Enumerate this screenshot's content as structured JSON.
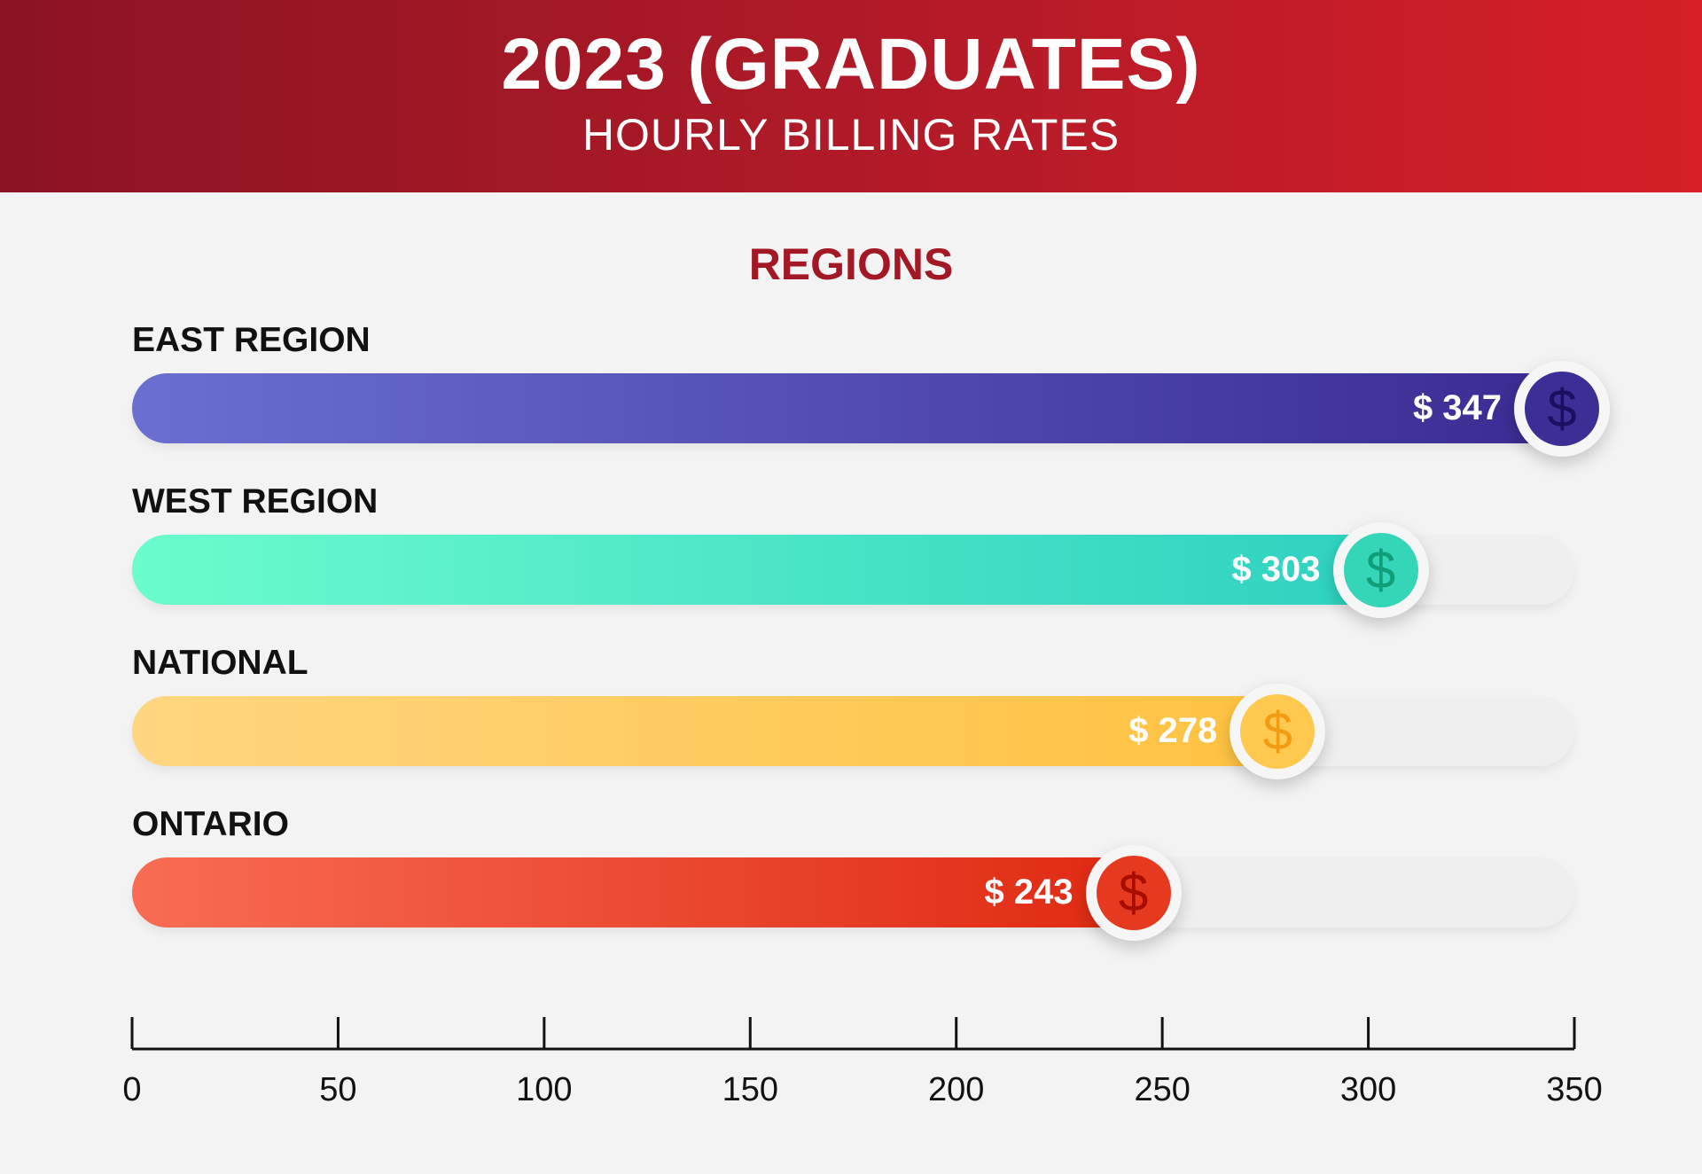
{
  "header": {
    "title": "2023 (GRADUATES)",
    "subtitle": "HOURLY BILLING RATES"
  },
  "section_title": "REGIONS",
  "chart_data": {
    "type": "bar",
    "orientation": "horizontal",
    "title": "2023 (GRADUATES)",
    "subtitle": "HOURLY BILLING RATES",
    "categories": [
      "EAST REGION",
      "WEST REGION",
      "NATIONAL",
      "ONTARIO"
    ],
    "values": [
      347,
      303,
      278,
      243
    ],
    "value_labels": [
      "$ 347",
      "$ 303",
      "$ 278",
      "$ 243"
    ],
    "xlim": [
      0,
      350
    ],
    "xticks": [
      0,
      50,
      100,
      150,
      200,
      250,
      300,
      350
    ],
    "grid": false,
    "colors": [
      {
        "from": "#6a6fd0",
        "to": "#3a2b92",
        "coin": "#3b2f96",
        "glyph": "#1a1060"
      },
      {
        "from": "#6bfccd",
        "to": "#2ed1c0",
        "coin": "#35d6b7",
        "glyph": "#0f9e78"
      },
      {
        "from": "#ffd680",
        "to": "#ffc240",
        "coin": "#ffc84f",
        "glyph": "#f39c12"
      },
      {
        "from": "#f86c54",
        "to": "#e02a12",
        "coin": "#e53a1f",
        "glyph": "#a80d00"
      }
    ],
    "icon": "dollar-icon"
  }
}
